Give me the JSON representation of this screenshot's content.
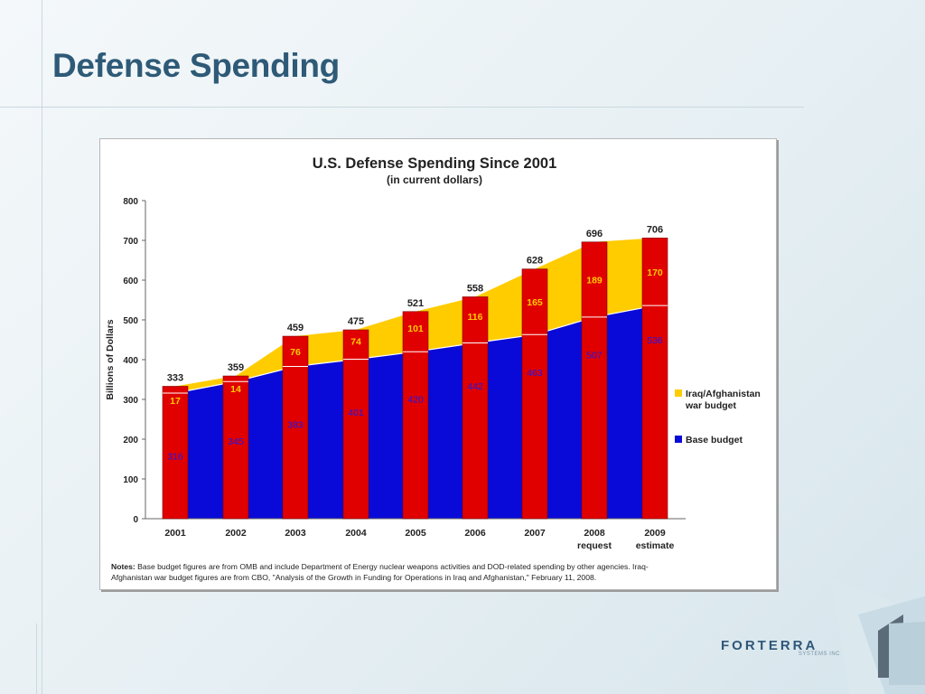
{
  "slide": {
    "title": "Defense Spending"
  },
  "logo": {
    "name": "FORTERRA",
    "subtitle": "SYSTEMS INC"
  },
  "chart_data": {
    "type": "bar",
    "stacked": true,
    "title": "U.S. Defense Spending Since 2001",
    "subtitle": "(in current dollars)",
    "ylabel": "Billions of Dollars",
    "xlabel": "",
    "ylim": [
      0,
      800
    ],
    "yticks": [
      0,
      100,
      200,
      300,
      400,
      500,
      600,
      700,
      800
    ],
    "categories": [
      [
        "2001"
      ],
      [
        "2002"
      ],
      [
        "2003"
      ],
      [
        "2004"
      ],
      [
        "2005"
      ],
      [
        "2006"
      ],
      [
        "2007"
      ],
      [
        "2008",
        "request"
      ],
      [
        "2009",
        "estimate"
      ]
    ],
    "series": [
      {
        "name": "Base budget",
        "values": [
          316,
          345,
          383,
          401,
          420,
          442,
          463,
          507,
          536
        ],
        "color": "#0a0ad8"
      },
      {
        "name": "Iraq/Afghanistan war budget",
        "values": [
          17,
          14,
          76,
          74,
          101,
          116,
          165,
          189,
          170
        ],
        "color": "#ffcc00"
      }
    ],
    "legend_labels": [
      {
        "lines": [
          "Iraq/Afghanistan",
          "war budget"
        ],
        "color": "#ffcc00"
      },
      {
        "lines": [
          "Base budget"
        ],
        "color": "#0a0ad8"
      }
    ],
    "totals": [
      333,
      359,
      459,
      475,
      521,
      558,
      628,
      696,
      706
    ],
    "bar_color": "#e00000",
    "legend_position": "right",
    "grid": false,
    "notes_label": "Notes:",
    "notes": [
      " Base budget figures are from OMB and include Department of Energy nuclear weapons activities and DOD-related spending by other agencies. Iraq-",
      "Afghanistan war budget figures are from CBO, \"Analysis of the Growth in Funding for Operations in Iraq and Afghanistan,\" February 11, 2008."
    ]
  }
}
